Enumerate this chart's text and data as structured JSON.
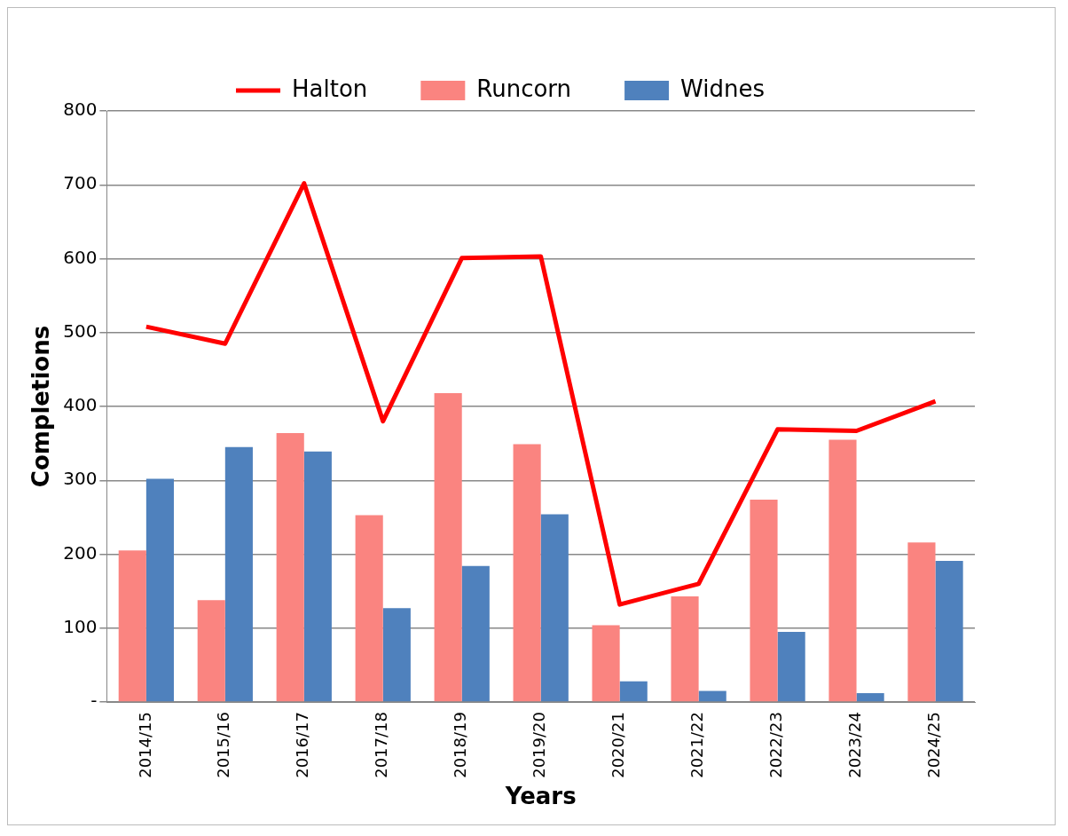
{
  "chart_data": {
    "type": "bar",
    "xlabel": "Years",
    "ylabel": "Completions",
    "categories": [
      "2014/15",
      "2015/16",
      "2016/17",
      "2017/18",
      "2018/19",
      "2019/20",
      "2020/21",
      "2021/22",
      "2022/23",
      "2023/24",
      "2024/25"
    ],
    "series": [
      {
        "name": "Runcorn",
        "color": "#fa8480",
        "values": [
          205,
          138,
          364,
          253,
          418,
          349,
          104,
          143,
          274,
          355,
          216
        ]
      },
      {
        "name": "Widnes",
        "color": "#4f81bd",
        "values": [
          302,
          345,
          339,
          127,
          184,
          254,
          28,
          15,
          95,
          12,
          191
        ]
      },
      {
        "name": "Halton",
        "type": "line",
        "color": "#ff0000",
        "marker": "none",
        "values": [
          508,
          485,
          702,
          380,
          601,
          603,
          132,
          160,
          369,
          367,
          407
        ]
      }
    ],
    "ylim": [
      0,
      800
    ],
    "yticks": [
      {
        "value": 0,
        "label": "-"
      },
      100,
      200,
      300,
      400,
      500,
      600,
      700,
      800
    ],
    "grid": "y",
    "legend": "top"
  }
}
